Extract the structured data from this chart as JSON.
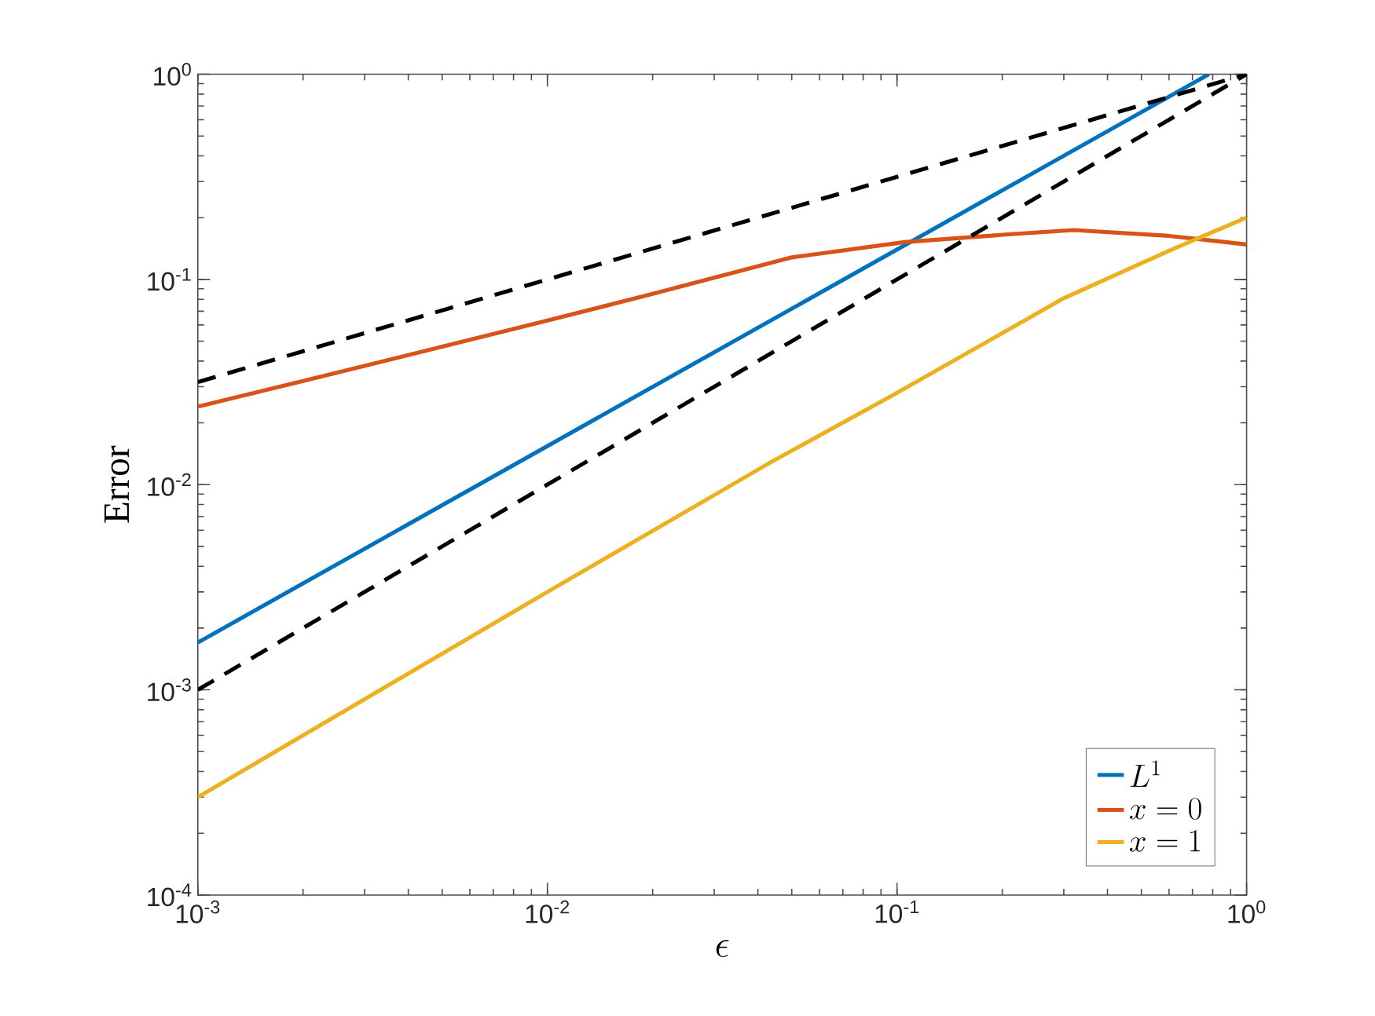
{
  "chart_data": {
    "type": "line",
    "xlabel": "\\epsilon",
    "ylabel": "Error",
    "log": "xy",
    "xlim": [
      0.001,
      1
    ],
    "ylim": [
      0.0001,
      1
    ],
    "xticks": [
      {
        "value": 0.001,
        "label": "10$^{-3}$"
      },
      {
        "value": 0.01,
        "label": "10$^{-2}$"
      },
      {
        "value": 0.1,
        "label": "10$^{-1}$"
      },
      {
        "value": 1,
        "label": "10$^{0}$"
      }
    ],
    "yticks": [
      {
        "value": 0.0001,
        "label": "10$^{-4}$"
      },
      {
        "value": 0.001,
        "label": "10$^{-3}$"
      },
      {
        "value": 0.01,
        "label": "10$^{-2}$"
      },
      {
        "value": 0.1,
        "label": "10$^{-1}$"
      },
      {
        "value": 1,
        "label": "10$^{0}$"
      }
    ],
    "grid": false,
    "legend": "bottom right",
    "marker": "none",
    "series": [
      {
        "name": "L^1",
        "color": "#0072bd",
        "line_style": "solid",
        "x": [
          0.001,
          0.78
        ],
        "values": [
          0.0017,
          1
        ]
      },
      {
        "name": "x=0",
        "color": "#d95319",
        "line_style": "solid",
        "x": [
          0.001,
          0.002,
          0.005,
          0.01,
          0.02,
          0.05,
          0.105,
          0.2,
          0.32,
          0.6,
          1
        ],
        "values": [
          0.024,
          0.032,
          0.047,
          0.063,
          0.085,
          0.128,
          0.152,
          0.165,
          0.174,
          0.163,
          0.148
        ]
      },
      {
        "name": "x=1",
        "color": "#edb120",
        "line_style": "solid",
        "x": [
          0.001,
          0.01,
          0.043,
          0.1,
          0.3,
          0.6,
          1
        ],
        "values": [
          0.0003,
          0.003,
          0.0127,
          0.028,
          0.081,
          0.138,
          0.2
        ]
      },
      {
        "color": "#000000",
        "line_style": "dashed",
        "x": [
          0.001,
          1
        ],
        "values": [
          0.0316,
          1
        ]
      },
      {
        "color": "#000000",
        "line_style": "dashed",
        "x": [
          0.001,
          1
        ],
        "values": [
          0.001,
          1
        ]
      }
    ]
  }
}
